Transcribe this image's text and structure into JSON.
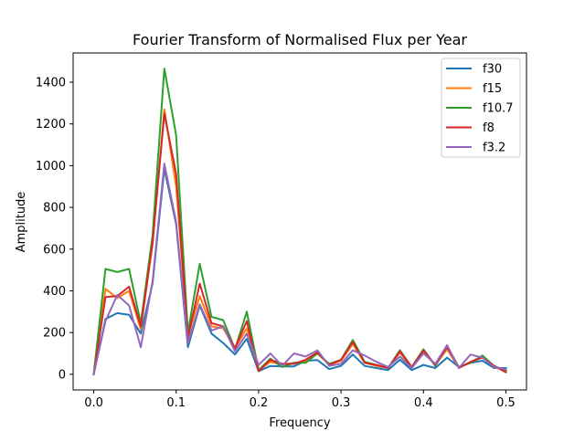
{
  "chart_data": {
    "type": "line",
    "title": "Fourier Transform of Normalised Flux per Year",
    "xlabel": "Frequency",
    "ylabel": "Amplitude",
    "xlim": [
      -0.025,
      0.525
    ],
    "ylim": [
      -75,
      1540
    ],
    "xticks": [
      "0.0",
      "0.1",
      "0.2",
      "0.3",
      "0.4",
      "0.5"
    ],
    "xtick_values": [
      0.0,
      0.1,
      0.2,
      0.3,
      0.4,
      0.5
    ],
    "yticks": [
      "0",
      "200",
      "400",
      "600",
      "800",
      "1000",
      "1200",
      "1400"
    ],
    "ytick_values": [
      0,
      200,
      400,
      600,
      800,
      1000,
      1200,
      1400
    ],
    "grid": false,
    "legend_position": "top-right",
    "x": [
      0.0,
      0.0143,
      0.0286,
      0.0429,
      0.0571,
      0.0714,
      0.0857,
      0.1,
      0.1143,
      0.1286,
      0.1429,
      0.1571,
      0.1714,
      0.1857,
      0.2,
      0.2143,
      0.2286,
      0.2429,
      0.2571,
      0.2714,
      0.2857,
      0.3,
      0.3143,
      0.3286,
      0.3429,
      0.3571,
      0.3714,
      0.3857,
      0.4,
      0.4143,
      0.4286,
      0.4429,
      0.4571,
      0.4714,
      0.4857,
      0.5
    ],
    "series": [
      {
        "name": "f30",
        "color": "#1f77b4",
        "values": [
          0,
          265,
          293,
          285,
          195,
          435,
          985,
          720,
          130,
          330,
          195,
          150,
          95,
          170,
          15,
          40,
          38,
          38,
          65,
          68,
          25,
          40,
          95,
          40,
          30,
          20,
          70,
          20,
          45,
          30,
          80,
          35,
          55,
          65,
          30,
          30
        ]
      },
      {
        "name": "f15",
        "color": "#ff7f0e",
        "values": [
          0,
          410,
          365,
          400,
          215,
          625,
          1270,
          900,
          180,
          375,
          230,
          220,
          125,
          220,
          20,
          60,
          45,
          55,
          60,
          100,
          45,
          65,
          145,
          55,
          40,
          30,
          105,
          30,
          105,
          45,
          120,
          30,
          60,
          85,
          35,
          20
        ]
      },
      {
        "name": "f10.7",
        "color": "#2ca02c",
        "values": [
          0,
          505,
          490,
          505,
          245,
          665,
          1465,
          1145,
          200,
          530,
          275,
          260,
          120,
          300,
          20,
          75,
          35,
          55,
          55,
          100,
          50,
          70,
          165,
          60,
          45,
          30,
          115,
          35,
          120,
          40,
          135,
          35,
          55,
          90,
          40,
          15
        ]
      },
      {
        "name": "f8",
        "color": "#d62728",
        "values": [
          0,
          370,
          375,
          420,
          230,
          630,
          1250,
          960,
          175,
          435,
          245,
          230,
          125,
          255,
          15,
          70,
          50,
          50,
          70,
          105,
          45,
          70,
          155,
          55,
          45,
          30,
          110,
          35,
          115,
          45,
          130,
          30,
          60,
          80,
          40,
          10
        ]
      },
      {
        "name": "f3.2",
        "color": "#9467bd",
        "values": [
          0,
          255,
          380,
          330,
          130,
          445,
          1010,
          730,
          150,
          335,
          210,
          230,
          110,
          195,
          45,
          100,
          40,
          100,
          85,
          115,
          40,
          50,
          115,
          90,
          60,
          35,
          85,
          30,
          100,
          50,
          140,
          30,
          95,
          80,
          35,
          25
        ]
      }
    ]
  }
}
